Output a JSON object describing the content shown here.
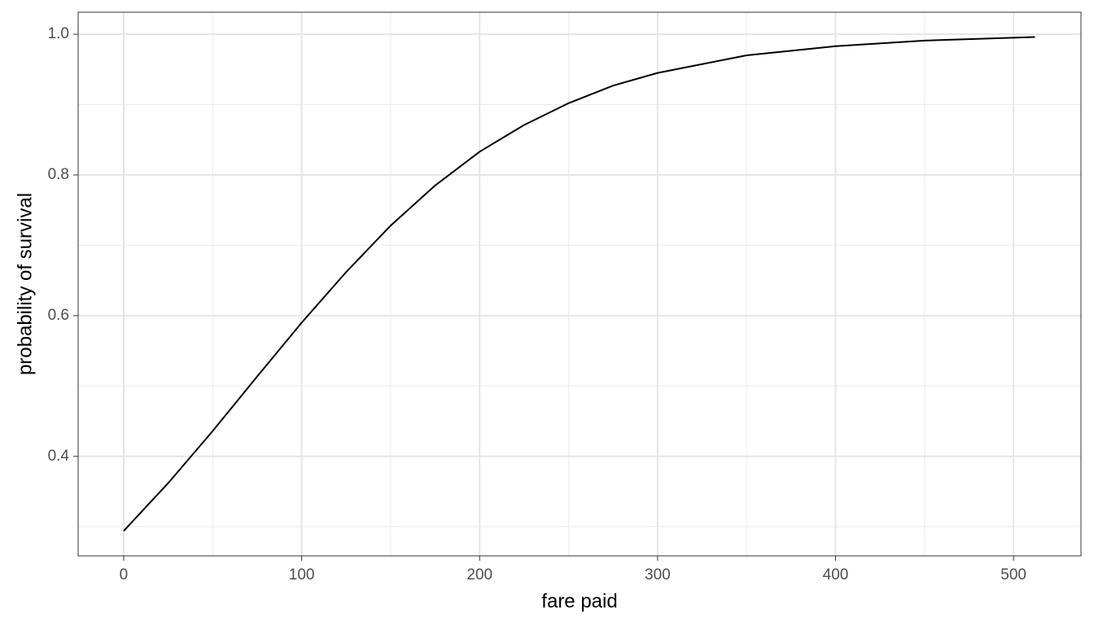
{
  "chart_data": {
    "type": "line",
    "x_label": "fare paid",
    "y_label": "probability of survival",
    "x": [
      0,
      25,
      50,
      75,
      100,
      125,
      150,
      175,
      200,
      225,
      250,
      275,
      300,
      350,
      400,
      450,
      512
    ],
    "series": [
      {
        "name": "survival",
        "color": "#000000",
        "values": [
          0.294,
          0.362,
          0.436,
          0.5135,
          0.59,
          0.662,
          0.728,
          0.785,
          0.833,
          0.871,
          0.902,
          0.927,
          0.945,
          0.97,
          0.983,
          0.991,
          0.996
        ]
      }
    ],
    "xlim": [
      -25.6,
      537.9
    ],
    "ylim": [
      0.2586,
      1.0313
    ],
    "xticks": [
      0,
      100,
      200,
      300,
      400,
      500
    ],
    "yticks": [
      0.4,
      0.6,
      0.8,
      {
        "value": 1,
        "label": "1.0"
      }
    ],
    "x_minor_ticks": [
      50,
      150,
      250,
      350,
      450
    ],
    "y_minor_ticks": [
      0.3,
      0.5,
      0.7,
      0.9
    ],
    "grid": true,
    "legend": false
  }
}
